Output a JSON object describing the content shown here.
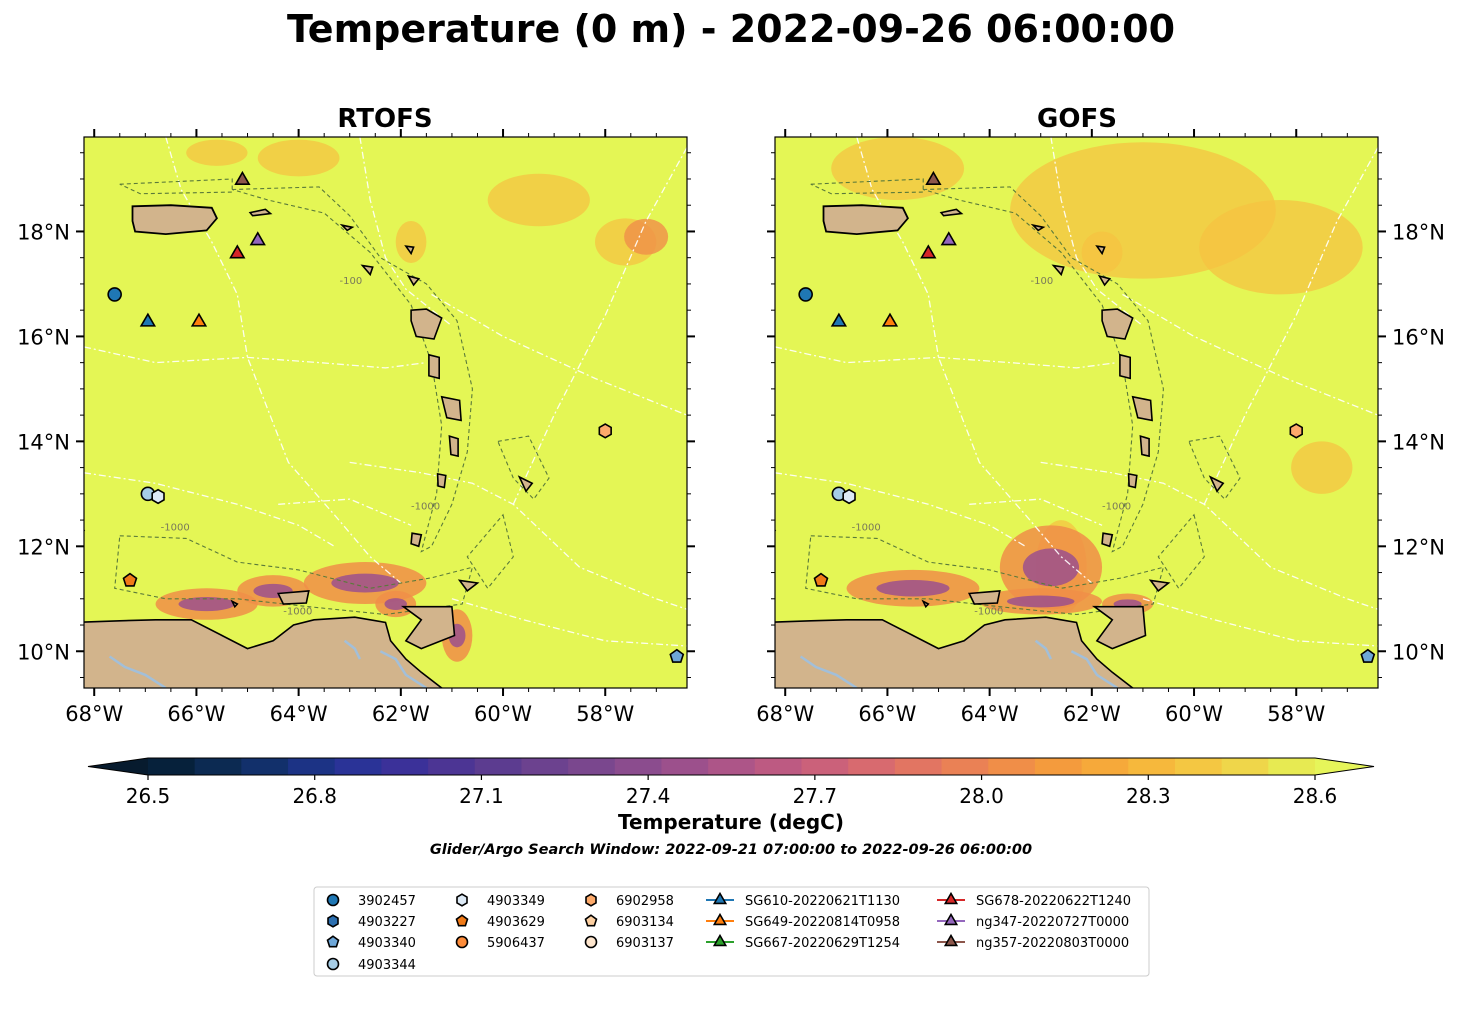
{
  "figure": {
    "title": "Temperature (0 m) - 2022-09-26 06:00:00",
    "search_window": "Glider/Argo Search Window: 2022-09-21 07:00:00 to 2022-09-26 06:00:00"
  },
  "panels": [
    {
      "title": "RTOFS"
    },
    {
      "title": "GOFS"
    }
  ],
  "map_extent": {
    "lon": [
      -68.2,
      -56.4
    ],
    "lat": [
      9.3,
      19.8
    ]
  },
  "axes": {
    "lon_ticks": [
      "68°W",
      "66°W",
      "64°W",
      "62°W",
      "60°W",
      "58°W"
    ],
    "lat_ticks": [
      "18°N",
      "16°N",
      "14°N",
      "12°N",
      "10°N"
    ]
  },
  "colorbar": {
    "label": "Temperature (degC)",
    "ticks": [
      "26.5",
      "26.8",
      "27.1",
      "27.4",
      "27.7",
      "28.0",
      "28.3",
      "28.6"
    ],
    "range": [
      26.5,
      28.6
    ],
    "extend": "both",
    "colors": [
      "#06213b",
      "#0c2a52",
      "#12306b",
      "#1c3385",
      "#2a3397",
      "#3b3199",
      "#4c3594",
      "#5c3c90",
      "#6c428f",
      "#7a478e",
      "#8b4c8e",
      "#9c508c",
      "#ad5588",
      "#bd5a82",
      "#cb617a",
      "#d86a6f",
      "#e27562",
      "#ea8155",
      "#f08e48",
      "#f49b3d",
      "#f6a93a",
      "#f6b83c",
      "#f4c742",
      "#efd64a",
      "#e7ea52"
    ],
    "over_color": "#e6f55a",
    "under_color": "#071b2e"
  },
  "colors": {
    "ocean_warm": "#e4f655",
    "warm_patch": "#f5c342",
    "land": "#d2b48c",
    "river": "#a2bfd9",
    "eez": "#ffffff",
    "contour": "#5a7a3a"
  },
  "contour_labels": [
    "-100",
    "-1000"
  ],
  "floats": [
    {
      "id": "3902457",
      "marker": "circle",
      "color": "#1f77b4",
      "lon": -67.6,
      "lat": 16.8
    },
    {
      "id": "4903227",
      "marker": "hexagon",
      "color": "#2c6fb0",
      "lon": null,
      "lat": null
    },
    {
      "id": "4903340",
      "marker": "pentagon",
      "color": "#6ea7d8",
      "lon": -56.6,
      "lat": 9.9
    },
    {
      "id": "4903344",
      "marker": "circle",
      "color": "#a6cde6",
      "lon": -66.95,
      "lat": 13.0
    },
    {
      "id": "4903349",
      "marker": "hexagon",
      "color": "#ddeaf6",
      "lon": -66.75,
      "lat": 12.95
    },
    {
      "id": "4903629",
      "marker": "pentagon",
      "color": "#f07a18",
      "lon": -67.3,
      "lat": 11.35
    },
    {
      "id": "5906437",
      "marker": "circle",
      "color": "#fd8c3a",
      "lon": null,
      "lat": null
    },
    {
      "id": "6902958",
      "marker": "hexagon",
      "color": "#fdaa6b",
      "lon": -58.0,
      "lat": 14.2
    },
    {
      "id": "6903134",
      "marker": "pentagon",
      "color": "#fdd0a2",
      "lon": null,
      "lat": null
    },
    {
      "id": "6903137",
      "marker": "circle",
      "color": "#fee6ce",
      "lon": null,
      "lat": null
    }
  ],
  "gliders": [
    {
      "id": "SG610-20220621T1130",
      "color": "#1f77b4",
      "lon": -66.95,
      "lat": 16.3
    },
    {
      "id": "SG649-20220814T0958",
      "color": "#ff7f0e",
      "lon": -65.95,
      "lat": 16.3
    },
    {
      "id": "SG667-20220629T1254",
      "color": "#2ca02c",
      "lon": null,
      "lat": null
    },
    {
      "id": "SG678-20220622T1240",
      "color": "#d62728",
      "lon": -65.2,
      "lat": 17.6
    },
    {
      "id": "ng347-20220727T0000",
      "color": "#9467bd",
      "lon": -64.8,
      "lat": 17.85
    },
    {
      "id": "ng357-20220803T0000",
      "color": "#8c564b",
      "lon": -65.1,
      "lat": 19.0
    }
  ]
}
